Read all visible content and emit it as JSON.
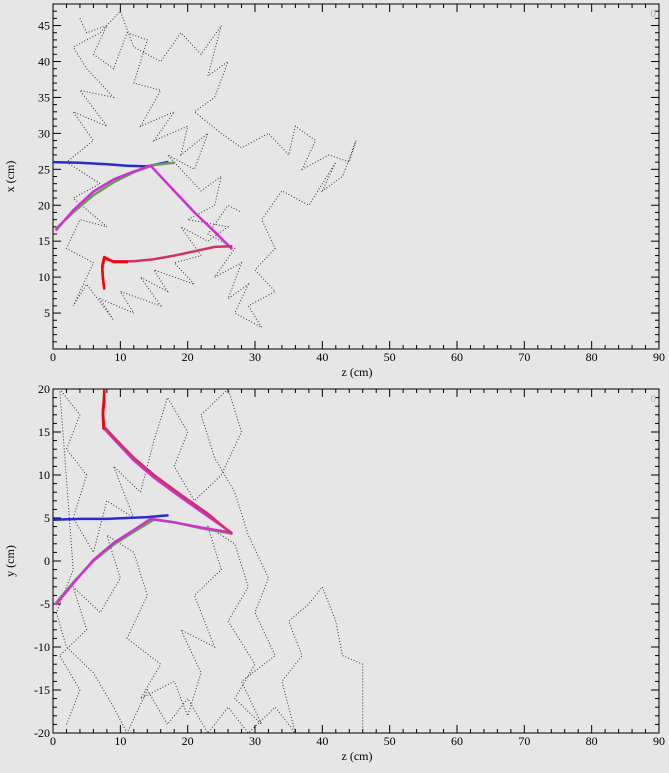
{
  "chart_data": [
    {
      "type": "scatter",
      "xlabel": "z (cm)",
      "ylabel": "x (cm)",
      "xlim": [
        0,
        90
      ],
      "ylim": [
        0,
        48
      ],
      "xticks": [
        0,
        10,
        20,
        30,
        40,
        50,
        60,
        70,
        80,
        90
      ],
      "yticks": [
        5,
        10,
        15,
        20,
        25,
        30,
        35,
        40,
        45
      ],
      "corner_mark": "0",
      "grid": false,
      "series": [
        {
          "style": "dotted",
          "color": "#333333",
          "points": [
            [
              4,
              46
            ],
            [
              5,
              44
            ],
            [
              8,
              45
            ],
            [
              6,
              41
            ],
            [
              9,
              39
            ],
            [
              11,
              44
            ],
            [
              14,
              43
            ],
            [
              12,
              37
            ],
            [
              16,
              36
            ],
            [
              13,
              31
            ],
            [
              18,
              33
            ],
            [
              15,
              29
            ],
            [
              20,
              31
            ],
            [
              19,
              27
            ],
            [
              23,
              30
            ],
            [
              21,
              25
            ],
            [
              17,
              27
            ],
            [
              22,
              22
            ],
            [
              25,
              24
            ],
            [
              24,
              20
            ],
            [
              20,
              18
            ],
            [
              26,
              17
            ],
            [
              23,
              15
            ],
            [
              19,
              17
            ],
            [
              22,
              13
            ],
            [
              18,
              12
            ],
            [
              21,
              9
            ],
            [
              15,
              11
            ],
            [
              17,
              8
            ],
            [
              13,
              10
            ],
            [
              16,
              6
            ],
            [
              10,
              8
            ],
            [
              12,
              5
            ],
            [
              7,
              7
            ],
            [
              9,
              4
            ],
            [
              5,
              9
            ],
            [
              3,
              6
            ],
            [
              6,
              12
            ],
            [
              2,
              14
            ],
            [
              4,
              18
            ],
            [
              8,
              17
            ],
            [
              3,
              21
            ],
            [
              7,
              23
            ],
            [
              2,
              26
            ],
            [
              6,
              29
            ],
            [
              3,
              33
            ],
            [
              8,
              31
            ],
            [
              4,
              36
            ],
            [
              9,
              35
            ],
            [
              5,
              39
            ],
            [
              3,
              42
            ],
            [
              7,
              44
            ],
            [
              10,
              47
            ],
            [
              12,
              42
            ],
            [
              16,
              40
            ],
            [
              19,
              44
            ],
            [
              22,
              41
            ],
            [
              25,
              45
            ],
            [
              23,
              38
            ],
            [
              26,
              40
            ],
            [
              24,
              35
            ],
            [
              21,
              33
            ],
            [
              25,
              30
            ],
            [
              28,
              28
            ],
            [
              32,
              30
            ],
            [
              35,
              27
            ],
            [
              36,
              31
            ],
            [
              39,
              29
            ],
            [
              37,
              25
            ],
            [
              41,
              27
            ],
            [
              44,
              26
            ],
            [
              45,
              29
            ],
            [
              43,
              24
            ],
            [
              40,
              22
            ],
            [
              42,
              26
            ],
            [
              38,
              20
            ],
            [
              34,
              22
            ],
            [
              31,
              18
            ],
            [
              33,
              14
            ],
            [
              30,
              11
            ],
            [
              33,
              8
            ],
            [
              29,
              6
            ],
            [
              31,
              3
            ],
            [
              27,
              5
            ],
            [
              29,
              9
            ],
            [
              26,
              7
            ],
            [
              28,
              12
            ],
            [
              24,
              10
            ],
            [
              27,
              14
            ],
            [
              23,
              16
            ],
            [
              26,
              20
            ],
            [
              28,
              19
            ]
          ]
        },
        {
          "style": "solid",
          "color": "#2a2acf",
          "points": [
            [
              0,
              26
            ],
            [
              4,
              25.9
            ],
            [
              8,
              25.7
            ],
            [
              11,
              25.5
            ],
            [
              14,
              25.4
            ],
            [
              17,
              26.0
            ]
          ]
        },
        {
          "style": "solid",
          "color": "#6e9a5e",
          "points": [
            [
              0.5,
              16.8
            ],
            [
              3,
              19
            ],
            [
              6,
              21.4
            ],
            [
              9,
              23.2
            ],
            [
              12,
              24.6
            ],
            [
              15,
              25.6
            ],
            [
              18,
              25.9
            ]
          ]
        },
        {
          "style": "solid",
          "color": "#cc33cc",
          "points": [
            [
              0.5,
              16.6
            ],
            [
              3,
              19.3
            ],
            [
              6,
              21.9
            ],
            [
              9,
              23.6
            ],
            [
              12,
              24.7
            ],
            [
              14.5,
              25.5
            ],
            [
              18,
              22
            ],
            [
              21,
              19
            ],
            [
              24,
              16.3
            ],
            [
              26.5,
              14
            ]
          ]
        },
        {
          "style": "solid",
          "color": "#cc3366",
          "points": [
            [
              7.5,
              9
            ],
            [
              7.3,
              11
            ],
            [
              7.6,
              12.6
            ],
            [
              9,
              12.2
            ],
            [
              12,
              12.2
            ],
            [
              15,
              12.5
            ],
            [
              18,
              13.0
            ],
            [
              21,
              13.6
            ],
            [
              24,
              14.2
            ],
            [
              26.5,
              14.3
            ]
          ]
        },
        {
          "style": "solid",
          "color": "#ff0000",
          "points": [
            [
              7.6,
              8.4
            ],
            [
              7.4,
              10
            ],
            [
              7.3,
              11.6
            ],
            [
              7.6,
              12.8
            ],
            [
              9,
              12.1
            ],
            [
              11,
              12.1
            ]
          ]
        }
      ]
    },
    {
      "type": "scatter",
      "xlabel": "z (cm)",
      "ylabel": "y (cm)",
      "xlim": [
        0,
        90
      ],
      "ylim": [
        -20,
        20
      ],
      "xticks": [
        0,
        10,
        20,
        30,
        40,
        50,
        60,
        70,
        80,
        90
      ],
      "yticks": [
        -20,
        -15,
        -10,
        -5,
        0,
        5,
        10,
        15,
        20
      ],
      "corner_mark": "0",
      "grid": false,
      "series": [
        {
          "style": "dotted",
          "color": "#333333",
          "points": [
            [
              2,
              -19
            ],
            [
              4,
              -15
            ],
            [
              1,
              -11
            ],
            [
              5,
              -8
            ],
            [
              3,
              -3
            ],
            [
              7,
              -6
            ],
            [
              10,
              -2
            ],
            [
              8,
              3
            ],
            [
              12,
              1
            ],
            [
              14,
              -4
            ],
            [
              11,
              -9
            ],
            [
              16,
              -12
            ],
            [
              13,
              -16
            ],
            [
              18,
              -14
            ],
            [
              20,
              -18
            ],
            [
              22,
              -13
            ],
            [
              19,
              -8
            ],
            [
              24,
              -10
            ],
            [
              21,
              -4
            ],
            [
              25,
              -1
            ],
            [
              23,
              4
            ],
            [
              27,
              2
            ],
            [
              29,
              -3
            ],
            [
              26,
              -7
            ],
            [
              30,
              -12
            ],
            [
              27,
              -16
            ],
            [
              31,
              -19
            ],
            [
              28,
              -14
            ],
            [
              33,
              -11
            ],
            [
              30,
              -6
            ],
            [
              32,
              -2
            ],
            [
              29,
              3
            ],
            [
              27,
              8
            ],
            [
              24,
              12
            ],
            [
              22,
              17
            ],
            [
              26,
              20
            ],
            [
              28,
              15
            ],
            [
              25,
              10
            ],
            [
              21,
              7
            ],
            [
              18,
              11
            ],
            [
              20,
              15
            ],
            [
              17,
              19
            ],
            [
              15,
              14
            ],
            [
              13,
              8
            ],
            [
              9,
              11
            ],
            [
              12,
              5
            ],
            [
              8,
              7
            ],
            [
              6,
              1
            ],
            [
              3,
              5
            ],
            [
              5,
              10
            ],
            [
              2,
              13
            ],
            [
              4,
              17
            ],
            [
              1,
              20
            ],
            [
              3,
              -1
            ],
            [
              0.5,
              -6
            ],
            [
              2,
              -10
            ],
            [
              6,
              -13
            ],
            [
              9,
              -17
            ],
            [
              11,
              -20
            ],
            [
              14,
              -15
            ],
            [
              17,
              -19
            ],
            [
              20,
              -16
            ],
            [
              23,
              -20
            ],
            [
              26,
              -17
            ],
            [
              29,
              -20
            ],
            [
              33,
              -17
            ],
            [
              36,
              -20
            ],
            [
              34,
              -14
            ],
            [
              37,
              -11
            ],
            [
              35,
              -7
            ],
            [
              38,
              -5
            ],
            [
              40,
              -3
            ],
            [
              42,
              -7
            ],
            [
              43,
              -11
            ],
            [
              46,
              -12
            ],
            [
              46,
              -20
            ]
          ]
        },
        {
          "style": "solid",
          "color": "#2a2acf",
          "points": [
            [
              0,
              4.8
            ],
            [
              4,
              4.9
            ],
            [
              8,
              4.9
            ],
            [
              11,
              5.0
            ],
            [
              14,
              5.1
            ],
            [
              17,
              5.3
            ]
          ]
        },
        {
          "style": "solid",
          "color": "#6e9a5e",
          "points": [
            [
              0.5,
              -4.8
            ],
            [
              3,
              -2.5
            ],
            [
              6,
              0
            ],
            [
              9,
              1.9
            ],
            [
              12,
              3.4
            ],
            [
              15,
              4.8
            ],
            [
              18,
              4.5
            ],
            [
              22,
              3.8
            ],
            [
              26.5,
              3.2
            ]
          ]
        },
        {
          "style": "solid",
          "color": "#cc33cc",
          "points": [
            [
              0.5,
              -5
            ],
            [
              3,
              -2.6
            ],
            [
              6,
              0.1
            ],
            [
              9,
              2.1
            ],
            [
              12,
              3.6
            ],
            [
              14.5,
              4.9
            ],
            [
              18,
              4.5
            ],
            [
              22,
              3.9
            ],
            [
              26.5,
              3.3
            ],
            [
              23,
              5.2
            ],
            [
              19,
              7.4
            ],
            [
              15,
              9.7
            ],
            [
              12,
              11.7
            ],
            [
              9,
              14.2
            ],
            [
              7.5,
              15.5
            ]
          ]
        },
        {
          "style": "solid",
          "color": "#cc3366",
          "points": [
            [
              26.5,
              3.2
            ],
            [
              23,
              5.5
            ],
            [
              19,
              7.7
            ],
            [
              15,
              10.0
            ],
            [
              12,
              12.0
            ],
            [
              9.5,
              14.0
            ],
            [
              7.6,
              15.6
            ],
            [
              7.4,
              17.5
            ],
            [
              7.6,
              19.5
            ]
          ]
        },
        {
          "style": "solid",
          "color": "#ff0000",
          "points": [
            [
              7.5,
              15.4
            ],
            [
              7.4,
              17
            ],
            [
              7.6,
              18.5
            ],
            [
              7.6,
              20
            ]
          ]
        }
      ]
    }
  ]
}
